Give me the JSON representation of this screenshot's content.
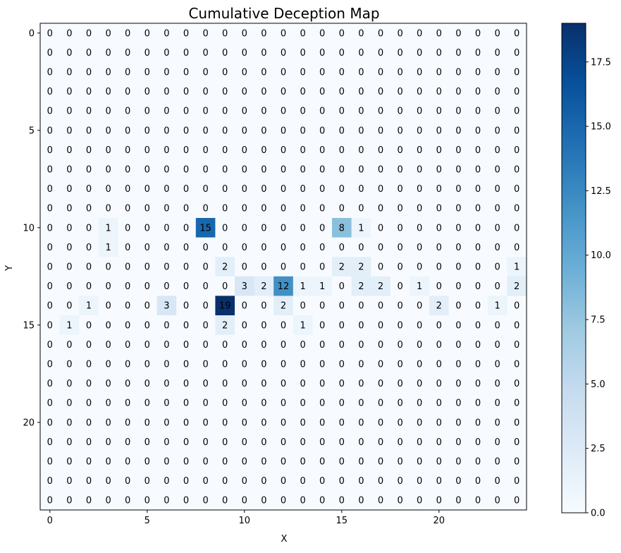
{
  "chart_data": {
    "type": "heatmap",
    "title": "Cumulative Deception Map",
    "xlabel": "X",
    "ylabel": "Y",
    "colormap": "Blues",
    "x_ticks": [
      0,
      5,
      10,
      15,
      20
    ],
    "y_ticks": [
      0,
      5,
      10,
      15,
      20
    ],
    "colorbar": {
      "min": 0,
      "max": 19,
      "ticks": [
        "0.0",
        "2.5",
        "5.0",
        "7.5",
        "10.0",
        "12.5",
        "15.0",
        "17.5"
      ]
    },
    "rows": 25,
    "cols": 25,
    "nonzero_cells": [
      {
        "y": 10,
        "x": 3,
        "v": 1
      },
      {
        "y": 10,
        "x": 8,
        "v": 15
      },
      {
        "y": 10,
        "x": 15,
        "v": 8
      },
      {
        "y": 10,
        "x": 16,
        "v": 1
      },
      {
        "y": 11,
        "x": 3,
        "v": 1
      },
      {
        "y": 12,
        "x": 9,
        "v": 2
      },
      {
        "y": 12,
        "x": 15,
        "v": 2
      },
      {
        "y": 12,
        "x": 16,
        "v": 2
      },
      {
        "y": 12,
        "x": 24,
        "v": 1
      },
      {
        "y": 13,
        "x": 10,
        "v": 3
      },
      {
        "y": 13,
        "x": 11,
        "v": 2
      },
      {
        "y": 13,
        "x": 12,
        "v": 12
      },
      {
        "y": 13,
        "x": 13,
        "v": 1
      },
      {
        "y": 13,
        "x": 14,
        "v": 1
      },
      {
        "y": 13,
        "x": 16,
        "v": 2
      },
      {
        "y": 13,
        "x": 17,
        "v": 2
      },
      {
        "y": 13,
        "x": 19,
        "v": 1
      },
      {
        "y": 13,
        "x": 24,
        "v": 2
      },
      {
        "y": 14,
        "x": 2,
        "v": 1
      },
      {
        "y": 14,
        "x": 6,
        "v": 3
      },
      {
        "y": 14,
        "x": 9,
        "v": 19
      },
      {
        "y": 14,
        "x": 12,
        "v": 2
      },
      {
        "y": 14,
        "x": 20,
        "v": 2
      },
      {
        "y": 14,
        "x": 23,
        "v": 1
      },
      {
        "y": 15,
        "x": 1,
        "v": 1
      },
      {
        "y": 15,
        "x": 9,
        "v": 2
      },
      {
        "y": 15,
        "x": 13,
        "v": 1
      }
    ]
  }
}
